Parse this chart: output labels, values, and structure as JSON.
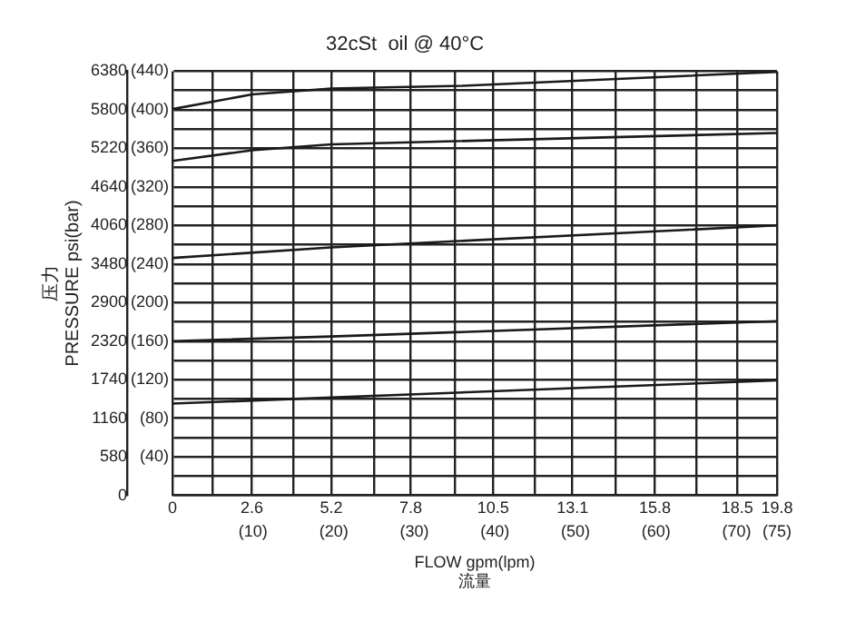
{
  "chart_data": {
    "type": "line",
    "title": "32cSt  oil @ 40°C",
    "xlabel": "FLOW gpm(lpm)\n流量",
    "ylabel": "压力\nPRESSURE psi(bar)",
    "xlim": [
      0,
      19.8
    ],
    "ylim": [
      0,
      6380
    ],
    "x2lim": [
      0,
      75
    ],
    "y2lim": [
      0,
      440
    ],
    "xticks": [
      0,
      {
        "value": 1.32,
        "label": null
      },
      2.6,
      {
        "value": 3.96,
        "label": null
      },
      5.2,
      {
        "value": 6.6,
        "label": null
      },
      7.8,
      {
        "value": 9.24,
        "label": null
      },
      10.5,
      {
        "value": 11.88,
        "label": null
      },
      13.1,
      {
        "value": 14.52,
        "label": null
      },
      15.8,
      {
        "value": 17.16,
        "label": null
      },
      18.5,
      19.8
    ],
    "x2ticks": [
      {
        "value": 10,
        "label": "(10)"
      },
      {
        "value": 20,
        "label": "(20)"
      },
      {
        "value": 30,
        "label": "(30)"
      },
      {
        "value": 40,
        "label": "(40)"
      },
      {
        "value": 50,
        "label": "(50)"
      },
      {
        "value": 60,
        "label": "(60)"
      },
      {
        "value": 70,
        "label": "(70)"
      },
      {
        "value": 75,
        "label": "(75)"
      }
    ],
    "yticks": [
      0,
      {
        "value": 290,
        "label": null
      },
      580,
      {
        "value": 870,
        "label": null
      },
      1160,
      {
        "value": 1450,
        "label": null
      },
      1740,
      {
        "value": 2030,
        "label": null
      },
      2320,
      {
        "value": 2610,
        "label": null
      },
      2900,
      {
        "value": 3190,
        "label": null
      },
      3480,
      {
        "value": 3770,
        "label": null
      },
      4060,
      {
        "value": 4350,
        "label": null
      },
      4640,
      {
        "value": 4930,
        "label": null
      },
      5220,
      {
        "value": 5510,
        "label": null
      },
      5800,
      {
        "value": 6090,
        "label": null
      },
      6380
    ],
    "y2ticks": [
      {
        "value": 40,
        "label": "(40)"
      },
      {
        "value": 80,
        "label": "(80)"
      },
      {
        "value": 120,
        "label": "(120)"
      },
      {
        "value": 160,
        "label": "(160)"
      },
      {
        "value": 200,
        "label": "(200)"
      },
      {
        "value": 240,
        "label": "(240)"
      },
      {
        "value": 280,
        "label": "(280)"
      },
      {
        "value": 320,
        "label": "(320)"
      },
      {
        "value": 360,
        "label": "(360)"
      },
      {
        "value": 400,
        "label": "(400)"
      },
      {
        "value": 440,
        "label": "(440)"
      }
    ],
    "grid": true,
    "legend": false,
    "marker": "none",
    "line_style": "solid",
    "series": [
      {
        "color": "#1a1a1a",
        "x": [
          0,
          2.6,
          5.2,
          9.5,
          19.8
        ],
        "values": [
          5810,
          6030,
          6120,
          6160,
          6370
        ]
      },
      {
        "color": "#1a1a1a",
        "x": [
          0,
          2.6,
          5.2,
          7.8,
          19.8
        ],
        "values": [
          5030,
          5190,
          5280,
          5310,
          5450
        ]
      },
      {
        "color": "#1a1a1a",
        "x": [
          0,
          5.2,
          19.8
        ],
        "values": [
          3570,
          3730,
          4060
        ]
      },
      {
        "color": "#1a1a1a",
        "x": [
          0,
          5.2,
          19.8
        ],
        "values": [
          2320,
          2390,
          2620
        ]
      },
      {
        "color": "#1a1a1a",
        "x": [
          0,
          19.8
        ],
        "values": [
          1380,
          1730
        ]
      }
    ]
  }
}
